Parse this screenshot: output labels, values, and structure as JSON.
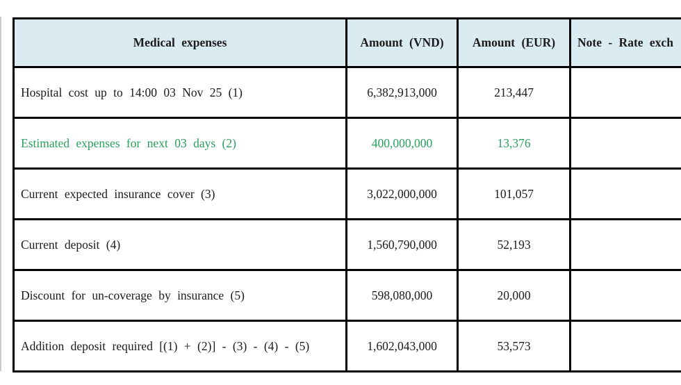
{
  "colors": {
    "header_bg": "#daebf2",
    "highlight_green": "#29a05e",
    "border": "#000000",
    "text": "#1b1b1b"
  },
  "table": {
    "headers": {
      "expenses": "Medical expenses",
      "vnd": "Amount (VND)",
      "eur": "Amount (EUR)",
      "note": "Note - Rate exch"
    },
    "rows": [
      {
        "label": "Hospital cost up to 14:00 03 Nov 25 (1)",
        "vnd": "6,382,913,000",
        "eur": "213,447",
        "note": "",
        "highlight": false
      },
      {
        "label": "Estimated expenses for next 03 days (2)",
        "vnd": "400,000,000",
        "eur": "13,376",
        "note": "",
        "highlight": true
      },
      {
        "label": "Current expected insurance cover (3)",
        "vnd": "3,022,000,000",
        "eur": "101,057",
        "note": "",
        "highlight": false
      },
      {
        "label": "Current deposit (4)",
        "vnd": "1,560,790,000",
        "eur": "52,193",
        "note": "",
        "highlight": false
      },
      {
        "label": "Discount for un-coverage by insurance (5)",
        "vnd": "598,080,000",
        "eur": "20,000",
        "note": "",
        "highlight": false
      },
      {
        "label": "Addition deposit required [(1) + (2)] - (3) - (4) - (5)",
        "vnd": "1,602,043,000",
        "eur": "53,573",
        "note": "",
        "highlight": false
      }
    ]
  }
}
